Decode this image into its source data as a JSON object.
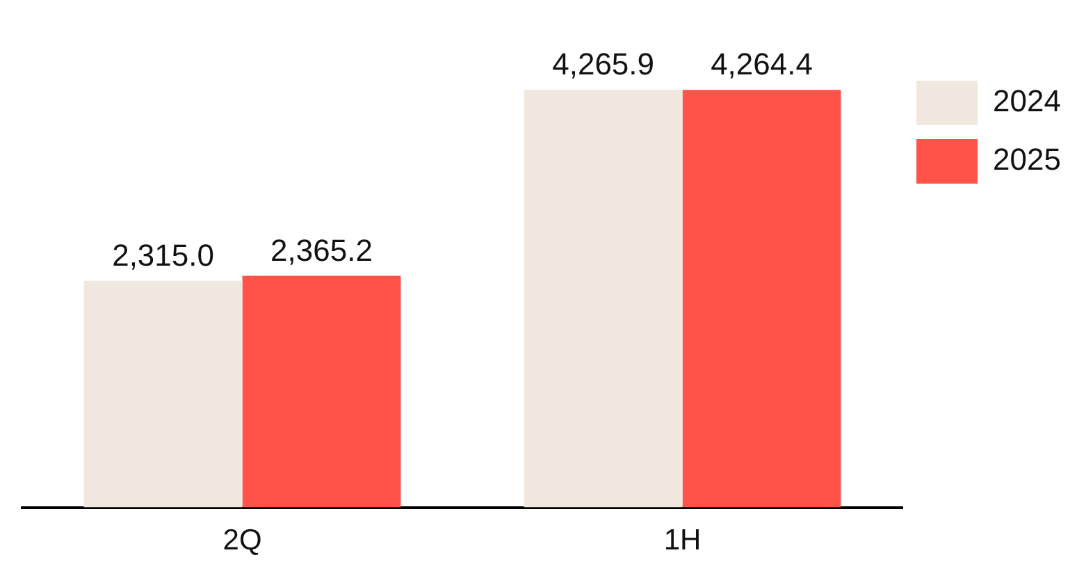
{
  "chart_data": {
    "type": "bar",
    "categories": [
      "2Q",
      "1H"
    ],
    "series": [
      {
        "name": "2024",
        "color": "#f0e8df",
        "values": [
          2315.0,
          4265.9
        ],
        "value_labels": [
          "2,315.0",
          "4,265.9"
        ]
      },
      {
        "name": "2025",
        "color": "#ff5248",
        "values": [
          2365.2,
          4264.4
        ],
        "value_labels": [
          "2,365.2",
          "4,264.4"
        ]
      }
    ],
    "legend": "top right",
    "grid": false
  }
}
